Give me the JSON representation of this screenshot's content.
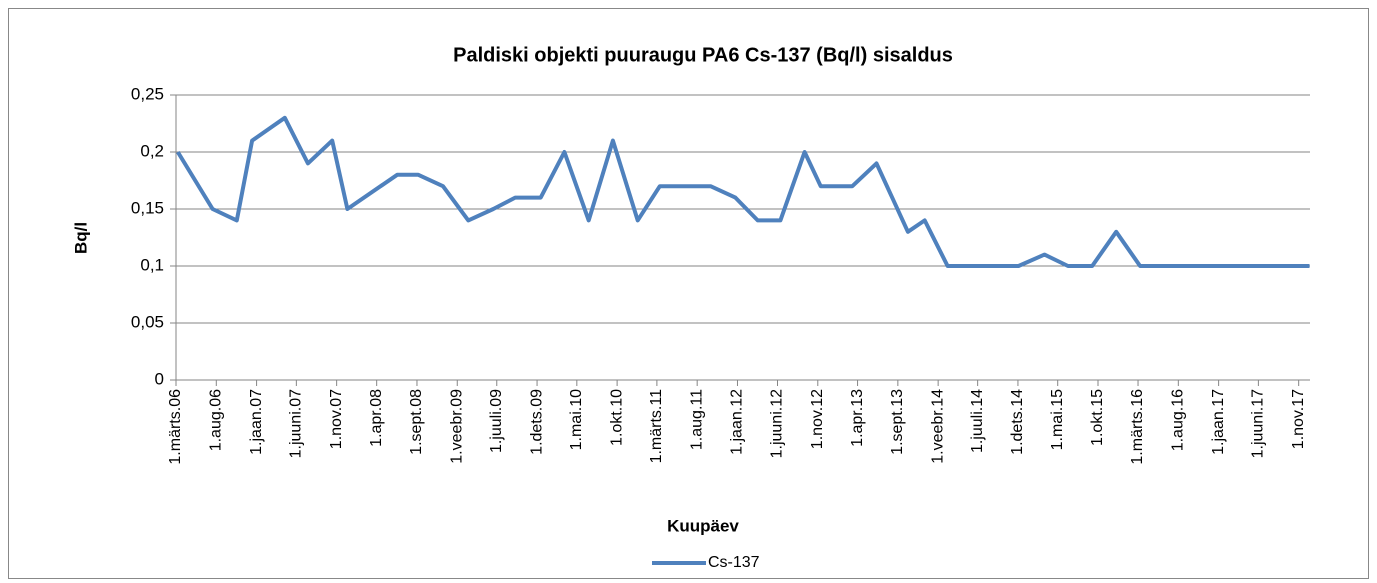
{
  "chart_data": {
    "type": "line",
    "title": "Paldiski objekti puuraugu PA6 Cs-137 (Bq/l) sisaldus",
    "x_label": "Kuupäev",
    "y_label": "Bq/l",
    "x": [
      "2006-03-08",
      "2006-07-18",
      "2006-10-18",
      "2006-12-15",
      "2007-04-18",
      "2007-07-15",
      "2007-10-15",
      "2007-12-12",
      "2008-06-18",
      "2008-09-06",
      "2008-12-09",
      "2009-03-15",
      "2009-06-18",
      "2009-09-09",
      "2009-12-15",
      "2010-03-15",
      "2010-06-15",
      "2010-09-15",
      "2010-12-18",
      "2011-03-12",
      "2011-06-18",
      "2011-09-21",
      "2011-12-24",
      "2012-03-18",
      "2012-06-12",
      "2012-09-12",
      "2012-11-12",
      "2013-03-12",
      "2013-06-12",
      "2013-10-09",
      "2013-12-12",
      "2014-03-09",
      "2014-12-03",
      "2015-03-12",
      "2015-06-09",
      "2015-09-09",
      "2015-12-09",
      "2016-03-09",
      "2017-12-12"
    ],
    "series": [
      {
        "name": "Cs-137",
        "color": "#4f81bd",
        "values": [
          0.2,
          0.15,
          0.14,
          0.21,
          0.23,
          0.19,
          0.21,
          0.15,
          0.18,
          0.18,
          0.17,
          0.14,
          0.15,
          0.16,
          0.16,
          0.2,
          0.14,
          0.21,
          0.14,
          0.17,
          0.17,
          0.17,
          0.16,
          0.14,
          0.14,
          0.2,
          0.17,
          0.17,
          0.19,
          0.13,
          0.14,
          0.1,
          0.1,
          0.11,
          0.1,
          0.1,
          0.13,
          0.1,
          0.1
        ]
      }
    ],
    "xlim": [
      "2006-03-01",
      "2017-12-14"
    ],
    "xticks": [
      {
        "value": "2006-03-01",
        "label": "1.märts.06"
      },
      {
        "value": "2006-08-01",
        "label": "1.aug.06"
      },
      {
        "value": "2007-01-01",
        "label": "1.jaan.07"
      },
      {
        "value": "2007-06-01",
        "label": "1.juuni.07"
      },
      {
        "value": "2007-11-01",
        "label": "1.nov.07"
      },
      {
        "value": "2008-04-01",
        "label": "1.apr.08"
      },
      {
        "value": "2008-09-01",
        "label": "1.sept.08"
      },
      {
        "value": "2009-02-01",
        "label": "1.veebr.09"
      },
      {
        "value": "2009-07-01",
        "label": "1.juuli.09"
      },
      {
        "value": "2009-12-01",
        "label": "1.dets.09"
      },
      {
        "value": "2010-05-01",
        "label": "1.mai.10"
      },
      {
        "value": "2010-10-01",
        "label": "1.okt.10"
      },
      {
        "value": "2011-03-01",
        "label": "1.märts.11"
      },
      {
        "value": "2011-08-01",
        "label": "1.aug.11"
      },
      {
        "value": "2012-01-01",
        "label": "1.jaan.12"
      },
      {
        "value": "2012-06-01",
        "label": "1.juuni.12"
      },
      {
        "value": "2012-11-01",
        "label": "1.nov.12"
      },
      {
        "value": "2013-04-01",
        "label": "1.apr.13"
      },
      {
        "value": "2013-09-01",
        "label": "1.sept.13"
      },
      {
        "value": "2014-02-01",
        "label": "1.veebr.14"
      },
      {
        "value": "2014-07-01",
        "label": "1.juuli.14"
      },
      {
        "value": "2014-12-01",
        "label": "1.dets.14"
      },
      {
        "value": "2015-05-01",
        "label": "1.mai.15"
      },
      {
        "value": "2015-10-01",
        "label": "1.okt.15"
      },
      {
        "value": "2016-03-01",
        "label": "1.märts.16"
      },
      {
        "value": "2016-08-01",
        "label": "1.aug.16"
      },
      {
        "value": "2017-01-01",
        "label": "1.jaan.17"
      },
      {
        "value": "2017-06-01",
        "label": "1.juuni.17"
      },
      {
        "value": "2017-11-01",
        "label": "1.nov.17"
      }
    ],
    "ylim": [
      0,
      0.25
    ],
    "yticks": [
      {
        "value": 0,
        "label": "0"
      },
      {
        "value": 0.05,
        "label": "0,05"
      },
      {
        "value": 0.1,
        "label": "0,1"
      },
      {
        "value": 0.15,
        "label": "0,15"
      },
      {
        "value": 0.2,
        "label": "0,2"
      },
      {
        "value": 0.25,
        "label": "0,25"
      }
    ],
    "grid": true,
    "legend": "bottom"
  }
}
